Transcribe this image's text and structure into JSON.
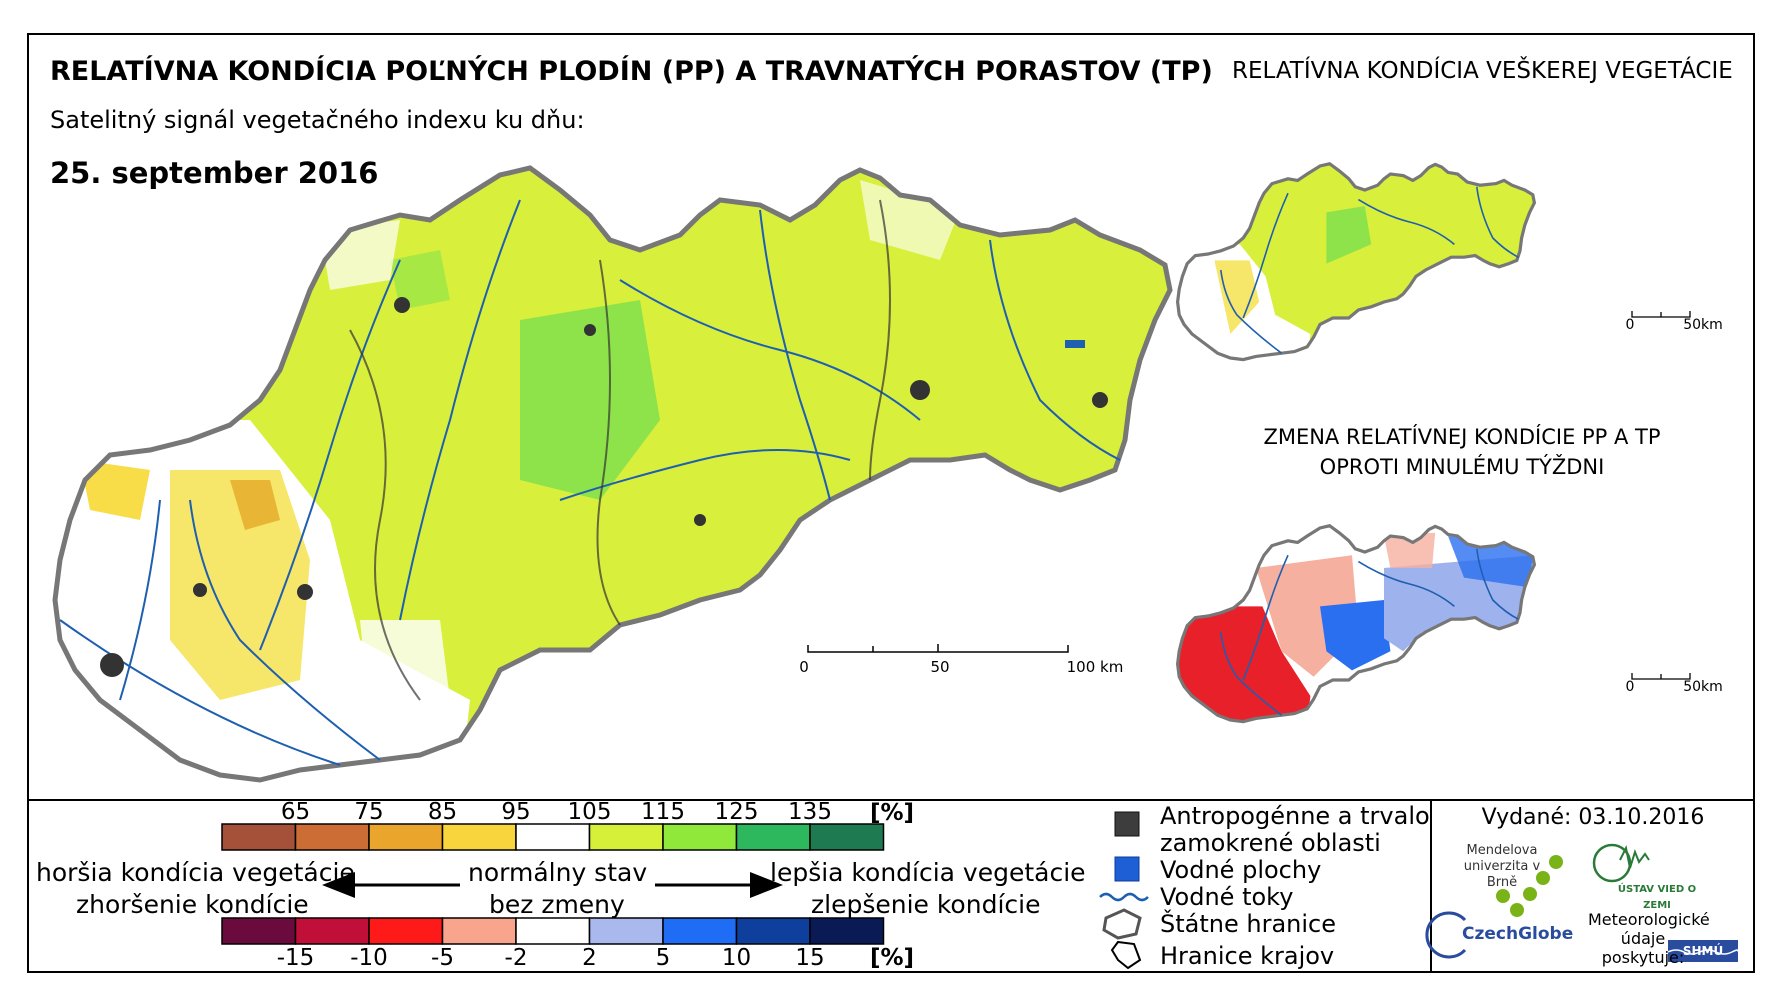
{
  "header": {
    "title": "RELATÍVNA KONDÍCIA POĽNÝCH PLODÍN (PP) A TRAVNATÝCH PORASTOV (TP)",
    "subtitle": "Satelitný signál vegetačného indexu ku dňu:",
    "date": "25. september 2016"
  },
  "inset_all": {
    "title": "RELATÍVNA KONDÍCIA VEŠKEREJ VEGETÁCIE",
    "scale": [
      "0",
      "50km"
    ]
  },
  "inset_change": {
    "title": "ZMENA RELATÍVNEJ KONDÍCIE PP A TP OPROTI MINULÉMU TÝŽDNI",
    "scale": [
      "0",
      "50km"
    ]
  },
  "main_map": {
    "scale": [
      "0",
      "50",
      "100 km"
    ]
  },
  "legend": {
    "condition": {
      "ticks": [
        "65",
        "75",
        "85",
        "95",
        "105",
        "115",
        "125",
        "135"
      ],
      "unit": "[%]",
      "colors": [
        "#a5513a",
        "#cd6d36",
        "#e9a52c",
        "#f8d53c",
        "#ffffff",
        "#d6f03a",
        "#8fe83a",
        "#2db85e",
        "#1e7a50"
      ]
    },
    "change": {
      "ticks": [
        "-15",
        "-10",
        "-5",
        "-2",
        "2",
        "5",
        "10",
        "15"
      ],
      "unit": "[%]",
      "colors": [
        "#6a0a3d",
        "#c0103a",
        "#ff1a1a",
        "#f9a58e",
        "#ffffff",
        "#a9b9ee",
        "#1f6cf5",
        "#0f3f9c",
        "#0a1a55"
      ]
    },
    "worse_1": "horšia kondícia vegetácie",
    "worse_2": "zhoršenie kondície",
    "normal_1": "normálny stav",
    "normal_2": "bez zmeny",
    "better_1": "lepšia kondícia vegetácie",
    "better_2": "zlepšenie kondície",
    "items": {
      "anthro_1": "Antropogénne a trvalo",
      "anthro_2": "zamokrené oblasti",
      "water_bodies": "Vodné plochy",
      "rivers": "Vodné toky",
      "state_border": "Štátne hranice",
      "regions": "Hranice krajov"
    }
  },
  "footer": {
    "issued": "Vydané: 03.10.2016",
    "mendel": "Mendelova univerzita v Brně",
    "czechglobe": "CzechGlobe",
    "uvz": "ÚSTAV VIED O ZEMI",
    "meteo": "Meteorologické údaje poskytuje:",
    "shmu": "SHMÚ"
  }
}
